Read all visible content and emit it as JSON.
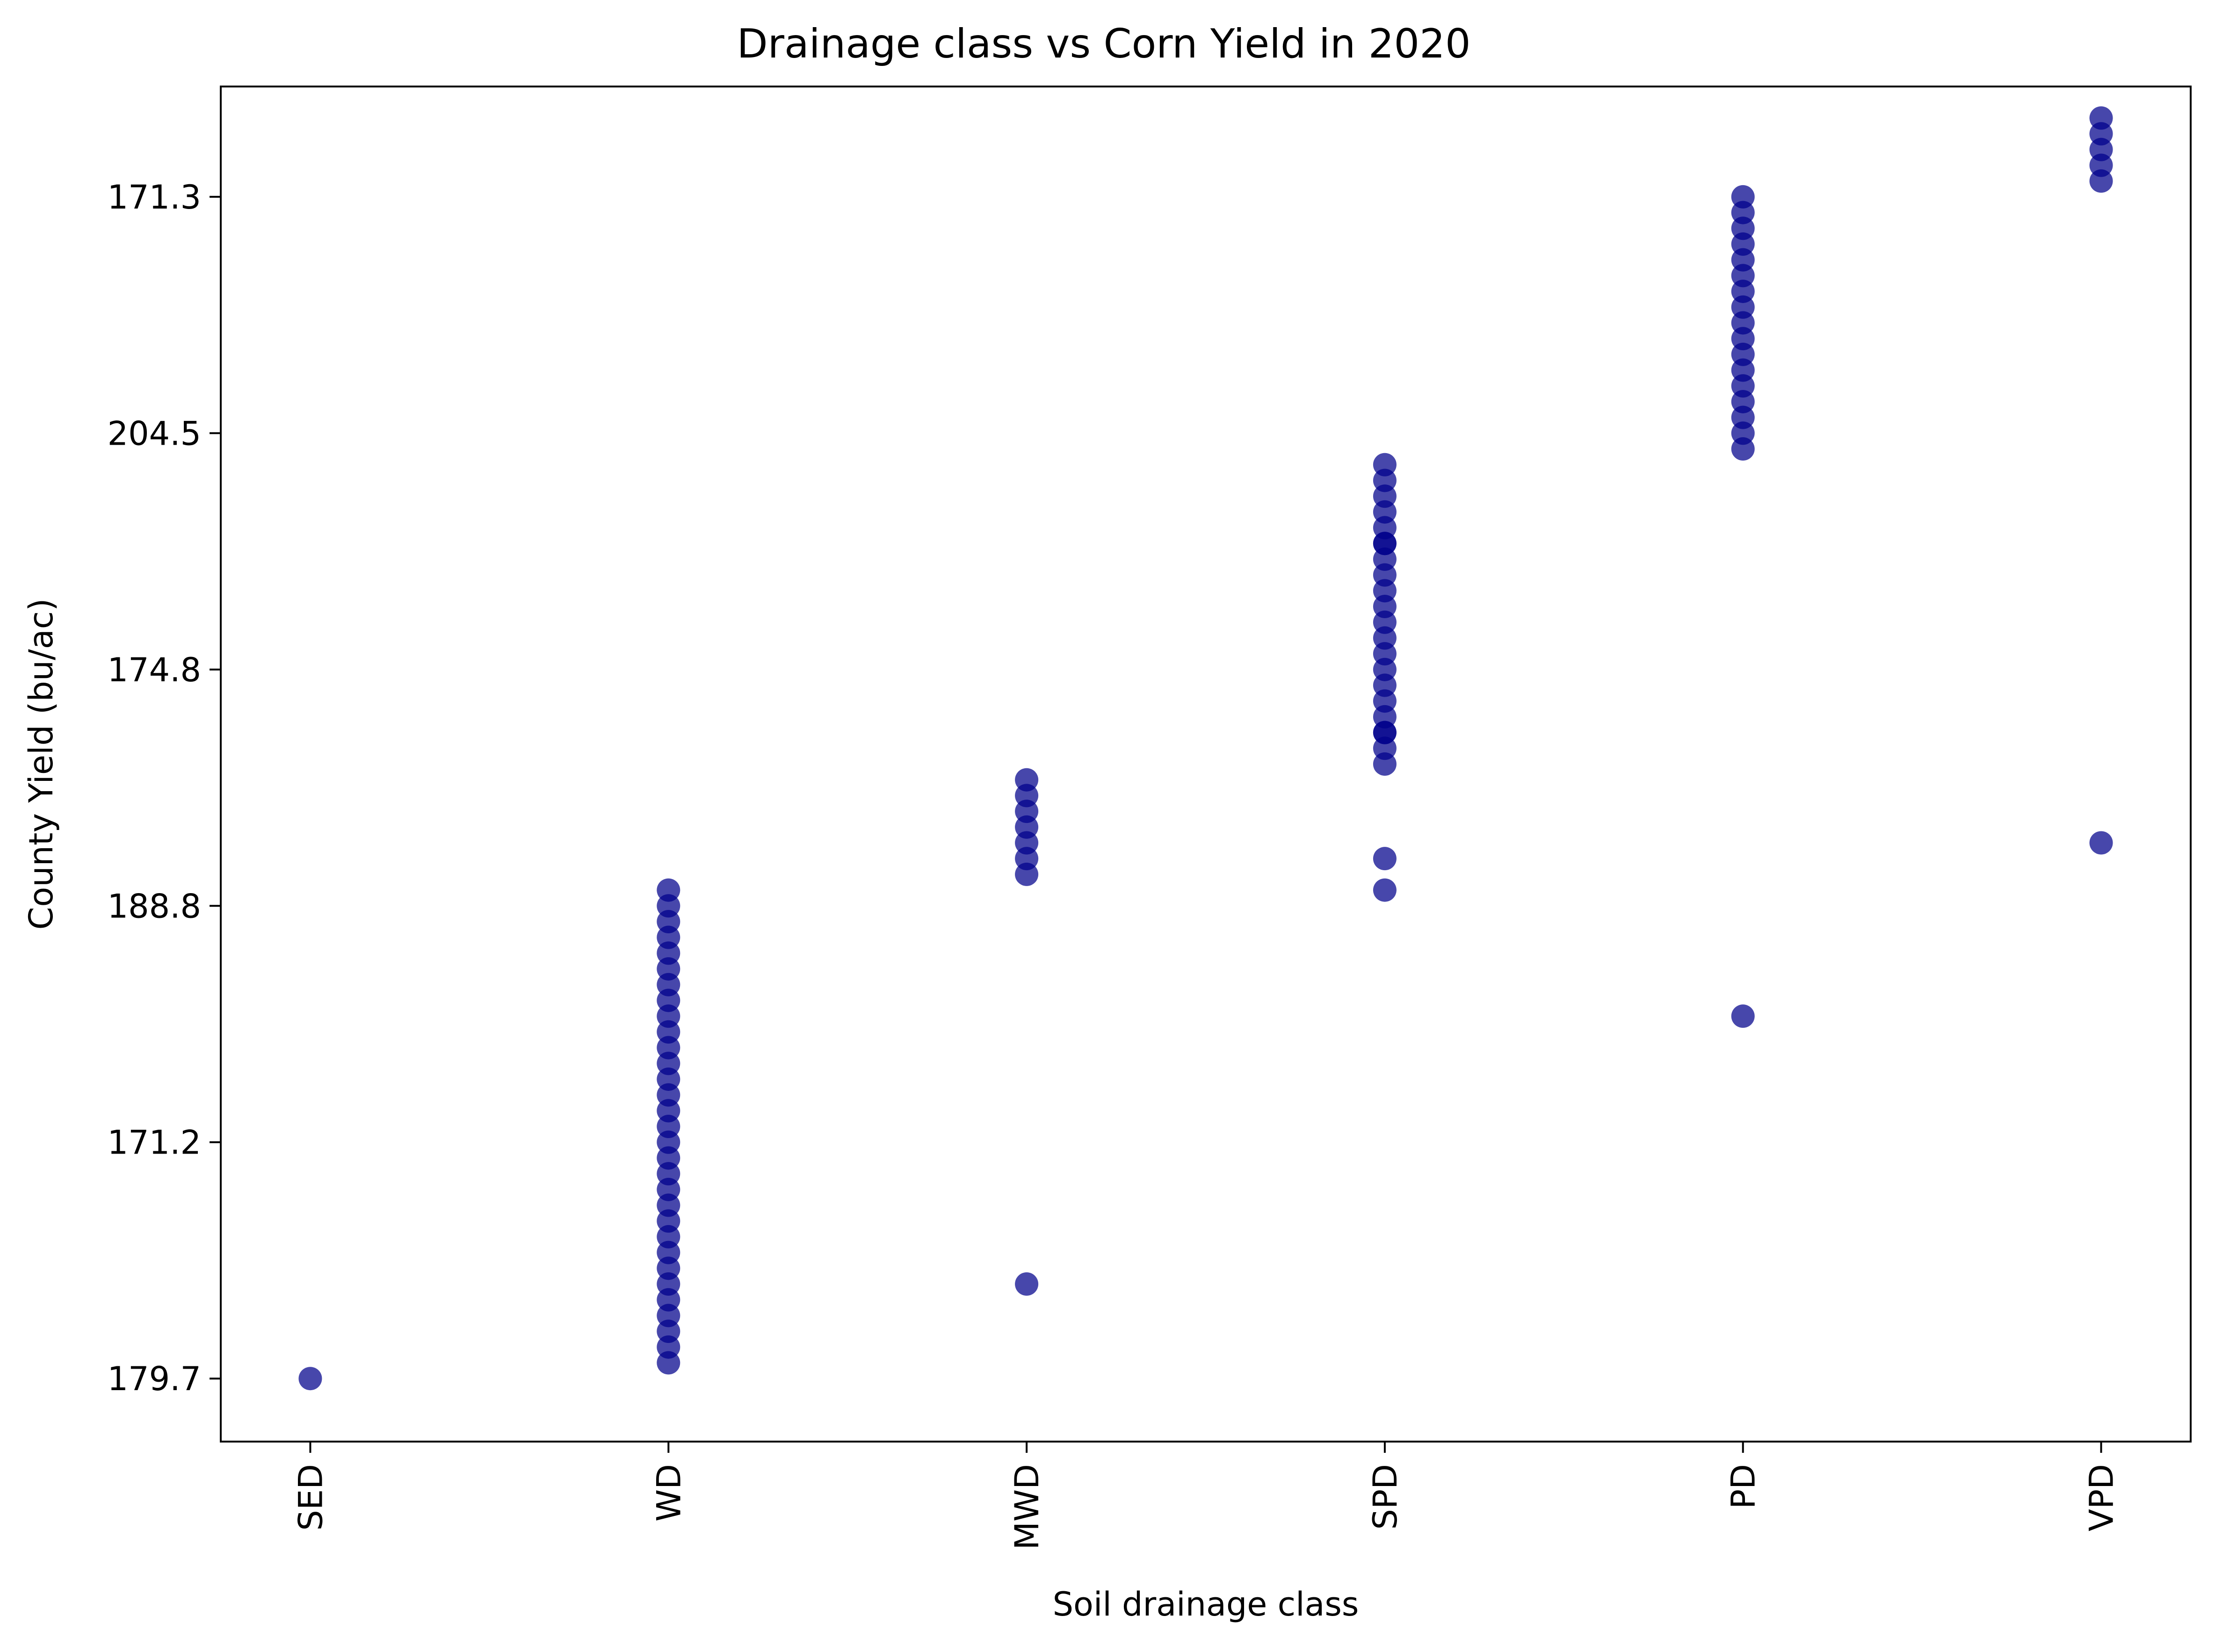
{
  "chart_data": {
    "type": "scatter",
    "title": "Drainage class vs Corn Yield in 2020",
    "xlabel": "Soil drainage class",
    "ylabel": "County Yield (bu/ac)",
    "categories": [
      "SED",
      "WD",
      "MWD",
      "SPD",
      "PD",
      "VPD"
    ],
    "y_ticks": [
      {
        "label": "171.3",
        "rank": 0
      },
      {
        "label": "204.5",
        "rank": 15
      },
      {
        "label": "174.8",
        "rank": 30
      },
      {
        "label": "188.8",
        "rank": 45
      },
      {
        "label": "171.2",
        "rank": 60
      },
      {
        "label": "179.7",
        "rank": 75
      }
    ],
    "y_range": [
      -7,
      79
    ],
    "y_inverted": true,
    "point_color": "#00008b",
    "point_opacity": 0.72,
    "grid": false,
    "legend": "none",
    "series": [
      {
        "category": "SED",
        "ranks": [
          75
        ]
      },
      {
        "category": "WD",
        "ranks": [
          44,
          45,
          46,
          47,
          48,
          49,
          50,
          51,
          52,
          53,
          54,
          55,
          56,
          57,
          58,
          59,
          60,
          61,
          62,
          63,
          64,
          65,
          66,
          67,
          68,
          69,
          70,
          71,
          72,
          73,
          74
        ]
      },
      {
        "category": "MWD",
        "ranks": [
          37,
          38,
          39,
          40,
          41,
          42,
          43,
          69
        ]
      },
      {
        "category": "SPD",
        "ranks": [
          17,
          18,
          19,
          20,
          21,
          22,
          22,
          23,
          24,
          25,
          26,
          27,
          28,
          29,
          30,
          31,
          32,
          33,
          34,
          34,
          35,
          36,
          42,
          44
        ]
      },
      {
        "category": "PD",
        "ranks": [
          0,
          1,
          2,
          3,
          4,
          5,
          6,
          7,
          8,
          9,
          10,
          11,
          12,
          13,
          14,
          15,
          16,
          52
        ]
      },
      {
        "category": "VPD",
        "ranks": [
          -5,
          -4,
          -3,
          -2,
          -1,
          41
        ]
      }
    ]
  }
}
